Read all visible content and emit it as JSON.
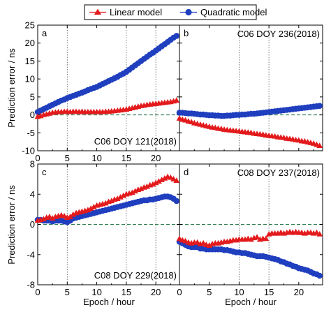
{
  "legend": {
    "placement": "top-center",
    "items": [
      {
        "label": "Linear model",
        "color": "#e31a1c",
        "marker": "triangle"
      },
      {
        "label": "Quadratic model",
        "color": "#1f3fbf",
        "marker": "circle"
      }
    ]
  },
  "axes": {
    "ylabel": "Prediction error / ns",
    "xlabel": "Epoch / hour"
  },
  "colors": {
    "linear": "#e31a1c",
    "quadratic": "#1f3fbf",
    "zero_line": "#2e7d4f"
  },
  "chart_data": [
    {
      "type": "scatter",
      "panel_label": "a",
      "annotation": "C06  DOY 121(2018)",
      "xlim": [
        0,
        24
      ],
      "ylim": [
        -10,
        25
      ],
      "xticks": [
        0,
        5,
        10,
        15,
        20
      ],
      "yticks": [
        -10,
        -5,
        0,
        5,
        10,
        15,
        20,
        25
      ],
      "x_major_ticks": [
        0,
        5,
        10,
        15,
        20
      ],
      "vlines": [
        5,
        15,
        20
      ],
      "series": [
        {
          "name": "Linear model",
          "x": [
            0,
            0.5,
            1,
            1.5,
            2,
            2.5,
            3,
            3.5,
            4,
            4.5,
            5,
            5.5,
            6,
            6.5,
            7,
            7.5,
            8,
            8.5,
            9,
            9.5,
            10,
            10.5,
            11,
            11.5,
            12,
            12.5,
            13,
            13.5,
            14,
            14.5,
            15,
            15.5,
            16,
            16.5,
            17,
            17.5,
            18,
            18.5,
            19,
            19.5,
            20,
            20.5,
            21,
            21.5,
            22,
            22.5,
            23,
            23.5
          ],
          "y": [
            -0.5,
            -0.3,
            0,
            0.2,
            0.4,
            0.6,
            0.7,
            0.8,
            0.8,
            0.9,
            0.9,
            0.8,
            0.9,
            0.9,
            0.8,
            0.9,
            0.8,
            0.8,
            0.8,
            0.8,
            0.8,
            0.8,
            0.8,
            0.9,
            0.9,
            1,
            1.1,
            1.2,
            1.3,
            1.4,
            1.5,
            1.7,
            1.9,
            2.1,
            2.3,
            2.5,
            2.6,
            2.8,
            2.9,
            3.0,
            3.1,
            3.2,
            3.3,
            3.4,
            3.5,
            3.6,
            3.8,
            4.0
          ]
        },
        {
          "name": "Quadratic model",
          "x": [
            0,
            0.5,
            1,
            1.5,
            2,
            2.5,
            3,
            3.5,
            4,
            4.5,
            5,
            5.5,
            6,
            6.5,
            7,
            7.5,
            8,
            8.5,
            9,
            9.5,
            10,
            10.5,
            11,
            11.5,
            12,
            12.5,
            13,
            13.5,
            14,
            14.5,
            15,
            15.5,
            16,
            16.5,
            17,
            17.5,
            18,
            18.5,
            19,
            19.5,
            20,
            20.5,
            21,
            21.5,
            22,
            22.5,
            23,
            23.5
          ],
          "y": [
            0.8,
            1.2,
            1.6,
            2.0,
            2.4,
            2.8,
            3.2,
            3.6,
            4.0,
            4.3,
            4.7,
            5.0,
            5.3,
            5.6,
            5.9,
            6.2,
            6.5,
            6.9,
            7.2,
            7.5,
            7.8,
            8.2,
            8.6,
            9.0,
            9.4,
            9.8,
            10.2,
            10.6,
            11.1,
            11.5,
            12.0,
            12.6,
            13.2,
            13.8,
            14.4,
            15.0,
            15.6,
            16.2,
            16.8,
            17.3,
            17.9,
            18.5,
            19.1,
            19.7,
            20.3,
            20.9,
            21.5,
            22.0
          ]
        }
      ]
    },
    {
      "type": "scatter",
      "panel_label": "b",
      "annotation": "C06  DOY 236(2018)",
      "xlim": [
        0,
        24
      ],
      "ylim": [
        -10,
        25
      ],
      "xticks": [],
      "yticks": [],
      "x_major_ticks": [
        0,
        5,
        10,
        15,
        20
      ],
      "vlines": [
        10,
        15
      ],
      "series": [
        {
          "name": "Linear model",
          "x": [
            0,
            0.5,
            1,
            1.5,
            2,
            2.5,
            3,
            3.5,
            4,
            4.5,
            5,
            5.5,
            6,
            6.5,
            7,
            7.5,
            8,
            8.5,
            9,
            9.5,
            10,
            10.5,
            11,
            11.5,
            12,
            12.5,
            13,
            13.5,
            14,
            14.5,
            15,
            15.5,
            16,
            16.5,
            17,
            17.5,
            18,
            18.5,
            19,
            19.5,
            20,
            20.5,
            21,
            21.5,
            22,
            22.5,
            23,
            23.5
          ],
          "y": [
            -1.0,
            -1.3,
            -1.5,
            -1.8,
            -2.0,
            -2.3,
            -2.5,
            -2.7,
            -2.9,
            -3.1,
            -3.3,
            -3.5,
            -3.6,
            -3.8,
            -3.9,
            -4.1,
            -4.2,
            -4.3,
            -4.4,
            -4.5,
            -4.6,
            -4.7,
            -4.8,
            -4.9,
            -5.0,
            -5.2,
            -5.3,
            -5.4,
            -5.5,
            -5.7,
            -5.8,
            -5.9,
            -6.0,
            -6.2,
            -6.3,
            -6.4,
            -6.6,
            -6.7,
            -6.8,
            -7.0,
            -7.1,
            -7.3,
            -7.4,
            -7.6,
            -7.8,
            -8.0,
            -8.3,
            -8.6
          ]
        },
        {
          "name": "Quadratic model",
          "x": [
            0,
            0.5,
            1,
            1.5,
            2,
            2.5,
            3,
            3.5,
            4,
            4.5,
            5,
            5.5,
            6,
            6.5,
            7,
            7.5,
            8,
            8.5,
            9,
            9.5,
            10,
            10.5,
            11,
            11.5,
            12,
            12.5,
            13,
            13.5,
            14,
            14.5,
            15,
            15.5,
            16,
            16.5,
            17,
            17.5,
            18,
            18.5,
            19,
            19.5,
            20,
            20.5,
            21,
            21.5,
            22,
            22.5,
            23,
            23.5
          ],
          "y": [
            0.6,
            0.6,
            0.5,
            0.4,
            0.4,
            0.3,
            0.2,
            0.1,
            0.1,
            0.0,
            -0.1,
            -0.1,
            -0.2,
            -0.2,
            -0.3,
            -0.3,
            -0.2,
            -0.2,
            -0.1,
            0.0,
            0.0,
            0.1,
            0.1,
            0.2,
            0.3,
            0.3,
            0.4,
            0.5,
            0.6,
            0.7,
            0.8,
            0.9,
            1.0,
            1.1,
            1.2,
            1.3,
            1.4,
            1.5,
            1.6,
            1.7,
            1.8,
            1.9,
            2.0,
            2.1,
            2.2,
            2.3,
            2.4,
            2.5
          ]
        }
      ]
    },
    {
      "type": "scatter",
      "panel_label": "c",
      "annotation": "C08  DOY 229(2018)",
      "xlim": [
        0,
        24
      ],
      "ylim": [
        -8,
        8
      ],
      "xticks": [
        0,
        5,
        10,
        15,
        20
      ],
      "yticks": [
        -8,
        -4,
        0,
        4,
        8
      ],
      "x_major_ticks": [
        0,
        5,
        10,
        15,
        20
      ],
      "vlines": [
        5,
        15,
        20
      ],
      "series": [
        {
          "name": "Linear model",
          "x": [
            0,
            0.5,
            1,
            1.5,
            2,
            2.5,
            3,
            3.5,
            4,
            4.5,
            5,
            5.5,
            6,
            6.5,
            7,
            7.5,
            8,
            8.5,
            9,
            9.5,
            10,
            10.5,
            11,
            11.5,
            12,
            12.5,
            13,
            13.5,
            14,
            14.5,
            15,
            15.5,
            16,
            16.5,
            17,
            17.5,
            18,
            18.5,
            19,
            19.5,
            20,
            20.5,
            21,
            21.5,
            22,
            22.5,
            23,
            23.5
          ],
          "y": [
            0.5,
            0.6,
            0.7,
            0.9,
            1.0,
            0.8,
            1.0,
            1.1,
            1.2,
            1.1,
            0.9,
            1.0,
            1.3,
            1.5,
            1.6,
            1.7,
            1.8,
            1.9,
            2.1,
            2.3,
            2.5,
            2.6,
            2.7,
            2.8,
            3.0,
            3.1,
            3.3,
            3.4,
            3.6,
            3.8,
            4.0,
            4.1,
            4.2,
            4.4,
            4.6,
            4.7,
            4.9,
            5.0,
            5.2,
            5.3,
            5.5,
            5.7,
            5.9,
            6.1,
            6.3,
            6.2,
            6.0,
            5.8
          ]
        },
        {
          "name": "Quadratic model",
          "x": [
            0,
            0.5,
            1,
            1.5,
            2,
            2.5,
            3,
            3.5,
            4,
            4.5,
            5,
            5.5,
            6,
            6.5,
            7,
            7.5,
            8,
            8.5,
            9,
            9.5,
            10,
            10.5,
            11,
            11.5,
            12,
            12.5,
            13,
            13.5,
            14,
            14.5,
            15,
            15.5,
            16,
            16.5,
            17,
            17.5,
            18,
            18.5,
            19,
            19.5,
            20,
            20.5,
            21,
            21.5,
            22,
            22.5,
            23,
            23.5
          ],
          "y": [
            0.6,
            0.6,
            0.5,
            0.5,
            0.5,
            0.4,
            0.5,
            0.5,
            0.5,
            0.4,
            0.3,
            0.5,
            0.8,
            0.9,
            1.0,
            1.1,
            1.2,
            1.3,
            1.4,
            1.5,
            1.6,
            1.7,
            1.8,
            1.9,
            2.0,
            2.1,
            2.2,
            2.3,
            2.4,
            2.5,
            2.6,
            2.7,
            2.8,
            2.9,
            3.0,
            3.1,
            3.2,
            3.2,
            3.3,
            3.3,
            3.4,
            3.5,
            3.6,
            3.7,
            3.7,
            3.6,
            3.4,
            3.1
          ]
        }
      ]
    },
    {
      "type": "scatter",
      "panel_label": "d",
      "annotation": "C08  DOY 237(2018)",
      "xlim": [
        0,
        24
      ],
      "ylim": [
        -8,
        8
      ],
      "xticks": [
        0,
        5,
        10,
        15,
        20
      ],
      "yticks": [],
      "x_major_ticks": [
        0,
        5,
        10,
        15,
        20
      ],
      "vlines": [
        10,
        15
      ],
      "series": [
        {
          "name": "Linear model",
          "x": [
            0,
            0.5,
            1,
            1.5,
            2,
            2.5,
            3,
            3.5,
            4,
            4.5,
            5,
            5.5,
            6,
            6.5,
            7,
            7.5,
            8,
            8.5,
            9,
            9.5,
            10,
            10.5,
            11,
            11.5,
            12,
            12.5,
            13,
            13.5,
            14,
            14.5,
            15,
            15.5,
            16,
            16.5,
            17,
            17.5,
            18,
            18.5,
            19,
            19.5,
            20,
            20.5,
            21,
            21.5,
            22,
            22.5,
            23,
            23.5
          ],
          "y": [
            -1.9,
            -2.1,
            -2.2,
            -2.4,
            -2.5,
            -2.4,
            -2.4,
            -2.6,
            -2.5,
            -2.7,
            -2.8,
            -2.6,
            -2.5,
            -2.5,
            -2.4,
            -2.3,
            -2.3,
            -2.2,
            -2.1,
            -2.1,
            -2.0,
            -2.0,
            -2.0,
            -1.9,
            -2.0,
            -1.8,
            -1.7,
            -2.0,
            -1.9,
            -1.9,
            -1.3,
            -1.2,
            -1.2,
            -1.2,
            -1.1,
            -1.2,
            -1.1,
            -1.0,
            -1.1,
            -1.0,
            -1.1,
            -1.1,
            -1.2,
            -1.1,
            -1.1,
            -1.2,
            -1.1,
            -1.3
          ]
        },
        {
          "name": "Quadratic model",
          "x": [
            0,
            0.5,
            1,
            1.5,
            2,
            2.5,
            3,
            3.5,
            4,
            4.5,
            5,
            5.5,
            6,
            6.5,
            7,
            7.5,
            8,
            8.5,
            9,
            9.5,
            10,
            10.5,
            11,
            11.5,
            12,
            12.5,
            13,
            13.5,
            14,
            14.5,
            15,
            15.5,
            16,
            16.5,
            17,
            17.5,
            18,
            18.5,
            19,
            19.5,
            20,
            20.5,
            21,
            21.5,
            22,
            22.5,
            23,
            23.5
          ],
          "y": [
            -2.3,
            -2.5,
            -2.7,
            -2.9,
            -3.0,
            -3.0,
            -3.0,
            -3.2,
            -3.2,
            -3.3,
            -3.3,
            -3.3,
            -3.3,
            -3.3,
            -3.3,
            -3.4,
            -3.4,
            -3.5,
            -3.6,
            -3.7,
            -3.7,
            -3.8,
            -3.8,
            -3.9,
            -4.0,
            -4.1,
            -4.2,
            -4.2,
            -4.2,
            -4.3,
            -4.4,
            -4.5,
            -4.6,
            -4.7,
            -4.9,
            -5.0,
            -5.2,
            -5.3,
            -5.5,
            -5.6,
            -5.8,
            -5.9,
            -6.0,
            -6.1,
            -6.3,
            -6.5,
            -6.6,
            -6.8
          ]
        }
      ]
    }
  ]
}
